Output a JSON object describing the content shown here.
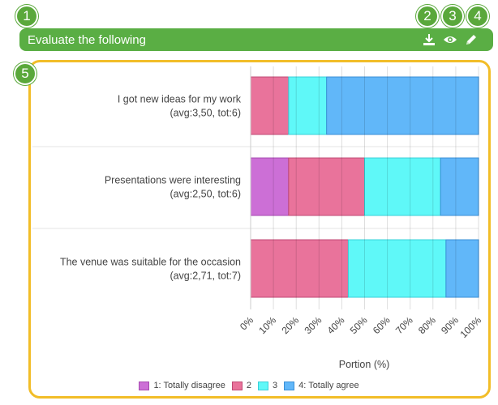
{
  "header": {
    "title": "Evaluate the following"
  },
  "callouts": [
    "1",
    "2",
    "3",
    "4",
    "5"
  ],
  "icons": {
    "download": "download-icon",
    "view": "eye-icon",
    "edit": "pencil-icon"
  },
  "colors": {
    "header_green": "#5aae44",
    "frame_yellow": "#f2bd28"
  },
  "chart_data": {
    "type": "bar",
    "orientation": "horizontal-stacked",
    "categories": [
      "I got new ideas for my work",
      "Presentations were interesting",
      "The venue was suitable for the occasion"
    ],
    "category_stats": [
      "(avg:3,50, tot:6)",
      "(avg:2,50, tot:6)",
      "(avg:2,71, tot:7)"
    ],
    "series": [
      {
        "name": "1: Totally disagree",
        "color": "#cc6fd6",
        "edge": "#a64ab0",
        "values": [
          0,
          16.67,
          0
        ]
      },
      {
        "name": "2",
        "color": "#e9739b",
        "edge": "#c04a74",
        "values": [
          16.67,
          33.33,
          42.86
        ]
      },
      {
        "name": "3",
        "color": "#5ff8f8",
        "edge": "#3ad0d8",
        "values": [
          16.67,
          33.33,
          42.86
        ]
      },
      {
        "name": "4: Totally agree",
        "color": "#61b7f9",
        "edge": "#3a8fd6",
        "values": [
          66.67,
          16.67,
          14.29
        ]
      }
    ],
    "xlabel": "Portion (%)",
    "xlim": [
      0,
      100
    ],
    "xticks": [
      "0%",
      "10%",
      "20%",
      "30%",
      "40%",
      "50%",
      "60%",
      "70%",
      "80%",
      "90%",
      "100%"
    ],
    "grid": true,
    "legend": "bottom"
  }
}
